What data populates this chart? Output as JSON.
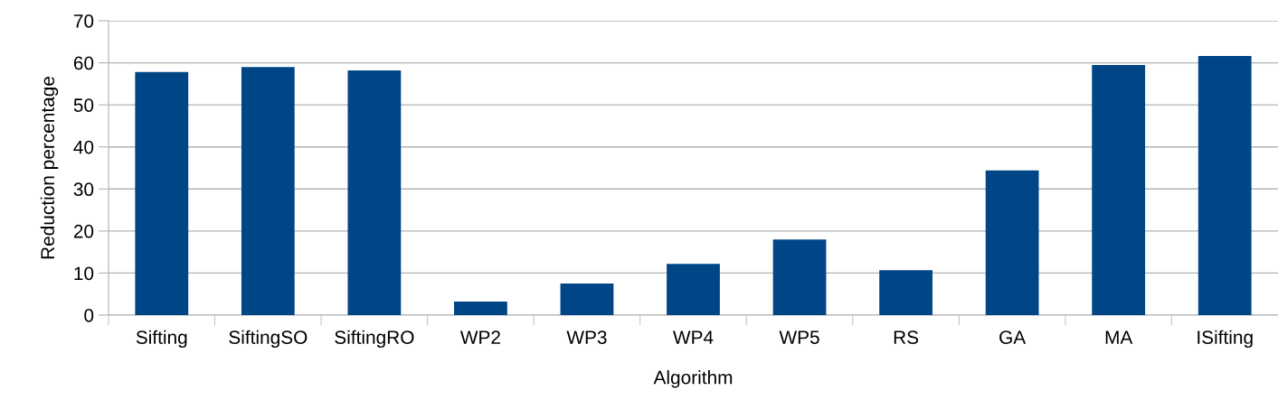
{
  "chart_data": {
    "type": "bar",
    "xlabel": "Algorithm",
    "ylabel": "Reduction percentage",
    "categories": [
      "Sifting",
      "SiftingSO",
      "SiftingRO",
      "WP2",
      "WP3",
      "WP4",
      "WP5",
      "RS",
      "GA",
      "MA",
      "ISifting"
    ],
    "values": [
      57.8,
      59.0,
      58.2,
      3.2,
      7.5,
      12.2,
      18.0,
      10.7,
      34.4,
      59.5,
      61.6
    ],
    "color": "#004586",
    "ylim": [
      0,
      70
    ],
    "yticks": [
      0,
      10,
      20,
      30,
      40,
      50,
      60,
      70
    ],
    "grid": "y"
  }
}
